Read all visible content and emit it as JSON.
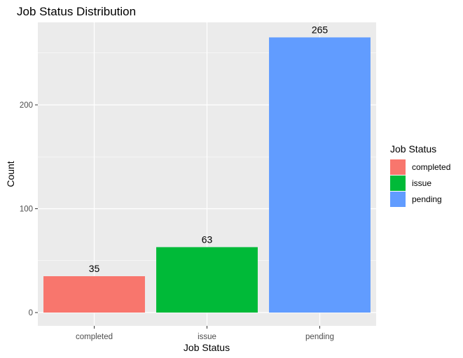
{
  "chart_data": {
    "type": "bar",
    "title": "Job Status Distribution",
    "xlabel": "Job Status",
    "ylabel": "Count",
    "categories": [
      "completed",
      "issue",
      "pending"
    ],
    "values": [
      35,
      63,
      265
    ],
    "data_labels": [
      "35",
      "63",
      "265"
    ],
    "colors": [
      "#F8766D",
      "#00BA38",
      "#619CFF"
    ],
    "ylim": [
      0,
      280
    ],
    "y_ticks": [
      0,
      100,
      200
    ],
    "y_tick_labels": [
      "0",
      "100",
      "200"
    ],
    "grid": true,
    "panel_background": "#EBEBEB",
    "gridline_color": "#FFFFFF",
    "legend": {
      "title": "Job Status",
      "placement": "right",
      "labels": [
        "completed",
        "issue",
        "pending"
      ]
    }
  }
}
